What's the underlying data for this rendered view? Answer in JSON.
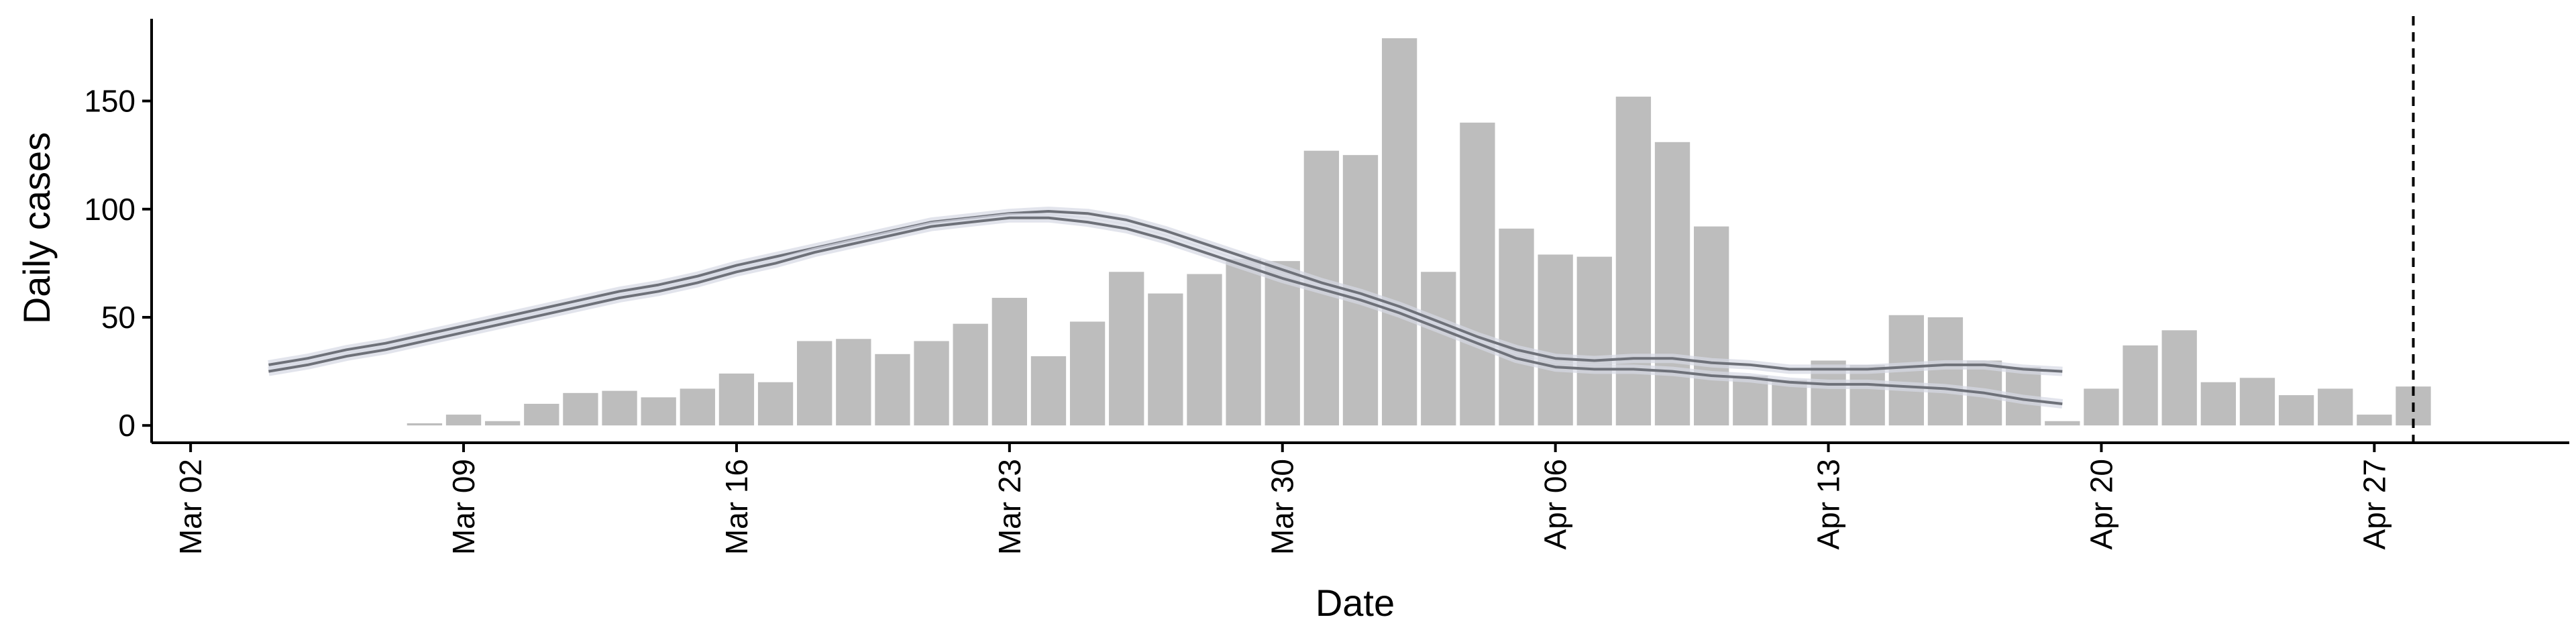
{
  "chart_data": {
    "type": "bar",
    "title": "",
    "xlabel": "Date",
    "ylabel": "Daily cases",
    "ylim": [
      -8,
      188
    ],
    "xlim": [
      "2020-03-01",
      "2020-05-02"
    ],
    "grid": false,
    "legend": "none",
    "x_ticks": [
      {
        "date": "2020-03-02",
        "label": "Mar 02"
      },
      {
        "date": "2020-03-09",
        "label": "Mar 09"
      },
      {
        "date": "2020-03-16",
        "label": "Mar 16"
      },
      {
        "date": "2020-03-23",
        "label": "Mar 23"
      },
      {
        "date": "2020-03-30",
        "label": "Mar 30"
      },
      {
        "date": "2020-04-06",
        "label": "Apr 06"
      },
      {
        "date": "2020-04-13",
        "label": "Apr 13"
      },
      {
        "date": "2020-04-20",
        "label": "Apr 20"
      },
      {
        "date": "2020-04-27",
        "label": "Apr 27"
      }
    ],
    "y_ticks": [
      0,
      50,
      100,
      150
    ],
    "bars": {
      "color": "#bdbdbd",
      "dates": [
        "2020-03-08",
        "2020-03-09",
        "2020-03-10",
        "2020-03-11",
        "2020-03-12",
        "2020-03-13",
        "2020-03-14",
        "2020-03-15",
        "2020-03-16",
        "2020-03-17",
        "2020-03-18",
        "2020-03-19",
        "2020-03-20",
        "2020-03-21",
        "2020-03-22",
        "2020-03-23",
        "2020-03-24",
        "2020-03-25",
        "2020-03-26",
        "2020-03-27",
        "2020-03-28",
        "2020-03-29",
        "2020-03-30",
        "2020-03-31",
        "2020-04-01",
        "2020-04-02",
        "2020-04-03",
        "2020-04-04",
        "2020-04-05",
        "2020-04-06",
        "2020-04-07",
        "2020-04-08",
        "2020-04-09",
        "2020-04-10",
        "2020-04-11",
        "2020-04-12",
        "2020-04-13",
        "2020-04-14",
        "2020-04-15",
        "2020-04-16",
        "2020-04-17",
        "2020-04-18",
        "2020-04-19",
        "2020-04-20",
        "2020-04-21",
        "2020-04-22",
        "2020-04-23",
        "2020-04-24",
        "2020-04-25",
        "2020-04-26",
        "2020-04-27",
        "2020-04-28"
      ],
      "values": [
        1,
        5,
        2,
        10,
        15,
        16,
        13,
        17,
        24,
        20,
        39,
        40,
        33,
        39,
        47,
        59,
        32,
        48,
        71,
        61,
        70,
        77,
        76,
        127,
        125,
        179,
        71,
        140,
        91,
        79,
        78,
        152,
        131,
        92,
        23,
        21,
        30,
        28,
        51,
        50,
        30,
        27,
        2,
        17,
        37,
        44,
        20,
        22,
        14,
        17,
        5,
        18
      ]
    },
    "series": [
      {
        "color": "#6e7179",
        "dates": [
          "2020-03-04",
          "2020-03-05",
          "2020-03-06",
          "2020-03-07",
          "2020-03-08",
          "2020-03-09",
          "2020-03-10",
          "2020-03-11",
          "2020-03-12",
          "2020-03-13",
          "2020-03-14",
          "2020-03-15",
          "2020-03-16",
          "2020-03-17",
          "2020-03-18",
          "2020-03-19",
          "2020-03-20",
          "2020-03-21",
          "2020-03-22",
          "2020-03-23",
          "2020-03-24",
          "2020-03-25",
          "2020-03-26",
          "2020-03-27",
          "2020-03-28",
          "2020-03-29",
          "2020-03-30",
          "2020-03-31",
          "2020-04-01",
          "2020-04-02",
          "2020-04-03",
          "2020-04-04",
          "2020-04-05",
          "2020-04-06",
          "2020-04-07",
          "2020-04-08",
          "2020-04-09",
          "2020-04-10",
          "2020-04-11",
          "2020-04-12",
          "2020-04-13",
          "2020-04-14",
          "2020-04-15",
          "2020-04-16",
          "2020-04-17",
          "2020-04-18",
          "2020-04-19"
        ],
        "values": [
          28,
          31,
          35,
          38,
          42,
          46,
          50,
          54,
          58,
          62,
          65,
          69,
          74,
          78,
          82,
          86,
          90,
          94,
          96,
          98,
          99,
          98,
          95,
          90,
          84,
          78,
          72,
          66,
          61,
          55,
          48,
          41,
          35,
          31,
          30,
          31,
          31,
          29,
          28,
          26,
          26,
          26,
          27,
          28,
          28,
          26,
          25
        ]
      },
      {
        "color": "#6e7179",
        "dates": [
          "2020-03-04",
          "2020-03-05",
          "2020-03-06",
          "2020-03-07",
          "2020-03-08",
          "2020-03-09",
          "2020-03-10",
          "2020-03-11",
          "2020-03-12",
          "2020-03-13",
          "2020-03-14",
          "2020-03-15",
          "2020-03-16",
          "2020-03-17",
          "2020-03-18",
          "2020-03-19",
          "2020-03-20",
          "2020-03-21",
          "2020-03-22",
          "2020-03-23",
          "2020-03-24",
          "2020-03-25",
          "2020-03-26",
          "2020-03-27",
          "2020-03-28",
          "2020-03-29",
          "2020-03-30",
          "2020-03-31",
          "2020-04-01",
          "2020-04-02",
          "2020-04-03",
          "2020-04-04",
          "2020-04-05",
          "2020-04-06",
          "2020-04-07",
          "2020-04-08",
          "2020-04-09",
          "2020-04-10",
          "2020-04-11",
          "2020-04-12",
          "2020-04-13",
          "2020-04-14",
          "2020-04-15",
          "2020-04-16",
          "2020-04-17",
          "2020-04-18",
          "2020-04-19"
        ],
        "values": [
          25,
          28,
          32,
          35,
          39,
          43,
          47,
          51,
          55,
          59,
          62,
          66,
          71,
          75,
          80,
          84,
          88,
          92,
          94,
          96,
          96,
          94,
          91,
          86,
          80,
          74,
          68,
          63,
          58,
          52,
          45,
          38,
          31,
          27,
          26,
          26,
          25,
          23,
          22,
          20,
          19,
          19,
          18,
          17,
          15,
          12,
          10
        ]
      }
    ],
    "vline": {
      "date": "2020-04-28",
      "style": "dashed",
      "color": "#000000"
    }
  }
}
